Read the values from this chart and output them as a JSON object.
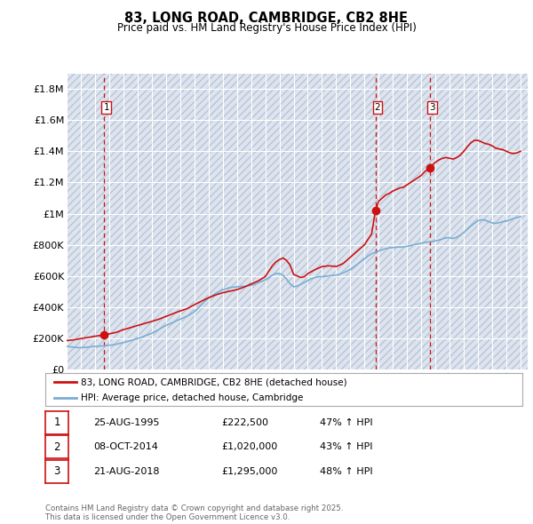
{
  "title": "83, LONG ROAD, CAMBRIDGE, CB2 8HE",
  "subtitle": "Price paid vs. HM Land Registry's House Price Index (HPI)",
  "ylim": [
    0,
    1900000
  ],
  "yticks": [
    0,
    200000,
    400000,
    600000,
    800000,
    1000000,
    1200000,
    1400000,
    1600000,
    1800000
  ],
  "ytick_labels": [
    "£0",
    "£200K",
    "£400K",
    "£600K",
    "£800K",
    "£1M",
    "£1.2M",
    "£1.4M",
    "£1.6M",
    "£1.8M"
  ],
  "xlim_start": 1993,
  "xlim_end": 2025.5,
  "background_color": "#ffffff",
  "plot_bg_color": "#dde4ee",
  "grid_color": "#ffffff",
  "hpi_line_color": "#7aadd4",
  "price_line_color": "#cc1111",
  "sale_marker_color": "#cc1111",
  "vline_color": "#cc1111",
  "legend_entries": [
    "83, LONG ROAD, CAMBRIDGE, CB2 8HE (detached house)",
    "HPI: Average price, detached house, Cambridge"
  ],
  "sales": [
    {
      "index": 1,
      "date": "25-AUG-1995",
      "price": 222500,
      "pct": "47%",
      "direction": "↑",
      "year": 1995.65
    },
    {
      "index": 2,
      "date": "08-OCT-2014",
      "price": 1020000,
      "pct": "43%",
      "direction": "↑",
      "year": 2014.77
    },
    {
      "index": 3,
      "date": "21-AUG-2018",
      "price": 1295000,
      "pct": "48%",
      "direction": "↑",
      "year": 2018.64
    }
  ],
  "footer": "Contains HM Land Registry data © Crown copyright and database right 2025.\nThis data is licensed under the Open Government Licence v3.0.",
  "hpi_data_x": [
    1993.0,
    1993.25,
    1993.5,
    1993.75,
    1994.0,
    1994.25,
    1994.5,
    1994.75,
    1995.0,
    1995.25,
    1995.5,
    1995.75,
    1996.0,
    1996.25,
    1996.5,
    1996.75,
    1997.0,
    1997.25,
    1997.5,
    1997.75,
    1998.0,
    1998.25,
    1998.5,
    1998.75,
    1999.0,
    1999.25,
    1999.5,
    1999.75,
    2000.0,
    2000.25,
    2000.5,
    2000.75,
    2001.0,
    2001.25,
    2001.5,
    2001.75,
    2002.0,
    2002.25,
    2002.5,
    2002.75,
    2003.0,
    2003.25,
    2003.5,
    2003.75,
    2004.0,
    2004.25,
    2004.5,
    2004.75,
    2005.0,
    2005.25,
    2005.5,
    2005.75,
    2006.0,
    2006.25,
    2006.5,
    2006.75,
    2007.0,
    2007.25,
    2007.5,
    2007.75,
    2008.0,
    2008.25,
    2008.5,
    2008.75,
    2009.0,
    2009.25,
    2009.5,
    2009.75,
    2010.0,
    2010.25,
    2010.5,
    2010.75,
    2011.0,
    2011.25,
    2011.5,
    2011.75,
    2012.0,
    2012.25,
    2012.5,
    2012.75,
    2013.0,
    2013.25,
    2013.5,
    2013.75,
    2014.0,
    2014.25,
    2014.5,
    2014.75,
    2015.0,
    2015.25,
    2015.5,
    2015.75,
    2016.0,
    2016.25,
    2016.5,
    2016.75,
    2017.0,
    2017.25,
    2017.5,
    2017.75,
    2018.0,
    2018.25,
    2018.5,
    2018.75,
    2019.0,
    2019.25,
    2019.5,
    2019.75,
    2020.0,
    2020.25,
    2020.5,
    2020.75,
    2021.0,
    2021.25,
    2021.5,
    2021.75,
    2022.0,
    2022.25,
    2022.5,
    2022.75,
    2023.0,
    2023.25,
    2023.5,
    2023.75,
    2024.0,
    2024.25,
    2024.5,
    2024.75,
    2025.0
  ],
  "hpi_data_y": [
    148000,
    145000,
    143000,
    140000,
    140000,
    141000,
    143000,
    146000,
    148000,
    149000,
    151000,
    152000,
    155000,
    158000,
    162000,
    167000,
    172000,
    178000,
    185000,
    192000,
    198000,
    205000,
    215000,
    223000,
    232000,
    244000,
    256000,
    270000,
    282000,
    292000,
    302000,
    313000,
    322000,
    332000,
    342000,
    355000,
    370000,
    392000,
    415000,
    438000,
    458000,
    472000,
    488000,
    500000,
    510000,
    518000,
    525000,
    528000,
    530000,
    532000,
    533000,
    535000,
    540000,
    548000,
    556000,
    565000,
    575000,
    590000,
    605000,
    615000,
    615000,
    605000,
    580000,
    550000,
    530000,
    535000,
    545000,
    558000,
    570000,
    582000,
    590000,
    595000,
    595000,
    598000,
    600000,
    602000,
    605000,
    612000,
    620000,
    630000,
    642000,
    658000,
    675000,
    692000,
    710000,
    728000,
    742000,
    752000,
    760000,
    768000,
    775000,
    780000,
    782000,
    785000,
    786000,
    786000,
    790000,
    795000,
    800000,
    805000,
    810000,
    815000,
    818000,
    820000,
    825000,
    830000,
    838000,
    845000,
    845000,
    840000,
    848000,
    862000,
    878000,
    900000,
    920000,
    938000,
    955000,
    960000,
    958000,
    948000,
    940000,
    938000,
    942000,
    948000,
    952000,
    960000,
    968000,
    975000,
    980000
  ],
  "price_line_x": [
    1993.0,
    1993.5,
    1995.65,
    1996.0,
    1996.5,
    1997.0,
    1997.5,
    1998.0,
    1998.5,
    1999.0,
    1999.5,
    2000.0,
    2000.5,
    2001.0,
    2001.5,
    2002.0,
    2002.5,
    2003.0,
    2003.5,
    2004.0,
    2004.5,
    2005.0,
    2005.5,
    2006.0,
    2006.5,
    2007.0,
    2007.25,
    2007.5,
    2007.75,
    2008.0,
    2008.25,
    2008.5,
    2008.75,
    2009.0,
    2009.25,
    2009.5,
    2009.75,
    2010.0,
    2010.5,
    2011.0,
    2011.5,
    2012.0,
    2012.5,
    2013.0,
    2013.5,
    2014.0,
    2014.5,
    2014.77,
    2015.0,
    2015.25,
    2015.5,
    2015.75,
    2016.0,
    2016.25,
    2016.5,
    2016.75,
    2017.0,
    2017.25,
    2017.5,
    2017.75,
    2018.0,
    2018.25,
    2018.64,
    2018.75,
    2019.0,
    2019.25,
    2019.5,
    2019.75,
    2020.0,
    2020.25,
    2020.5,
    2020.75,
    2021.0,
    2021.25,
    2021.5,
    2021.75,
    2022.0,
    2022.25,
    2022.5,
    2022.75,
    2023.0,
    2023.25,
    2023.5,
    2023.75,
    2024.0,
    2024.25,
    2024.5,
    2024.75,
    2025.0
  ],
  "price_line_y": [
    185000,
    190000,
    222500,
    228000,
    238000,
    255000,
    268000,
    282000,
    295000,
    308000,
    322000,
    340000,
    358000,
    375000,
    390000,
    415000,
    438000,
    460000,
    478000,
    492000,
    502000,
    512000,
    528000,
    548000,
    568000,
    595000,
    630000,
    665000,
    690000,
    705000,
    715000,
    700000,
    670000,
    610000,
    600000,
    590000,
    595000,
    615000,
    640000,
    660000,
    665000,
    660000,
    680000,
    720000,
    760000,
    800000,
    870000,
    1020000,
    1080000,
    1100000,
    1120000,
    1130000,
    1145000,
    1155000,
    1165000,
    1170000,
    1185000,
    1200000,
    1215000,
    1230000,
    1245000,
    1270000,
    1295000,
    1310000,
    1330000,
    1345000,
    1355000,
    1360000,
    1355000,
    1350000,
    1360000,
    1375000,
    1400000,
    1430000,
    1455000,
    1470000,
    1470000,
    1460000,
    1450000,
    1445000,
    1435000,
    1420000,
    1415000,
    1410000,
    1400000,
    1390000,
    1385000,
    1390000,
    1400000
  ]
}
